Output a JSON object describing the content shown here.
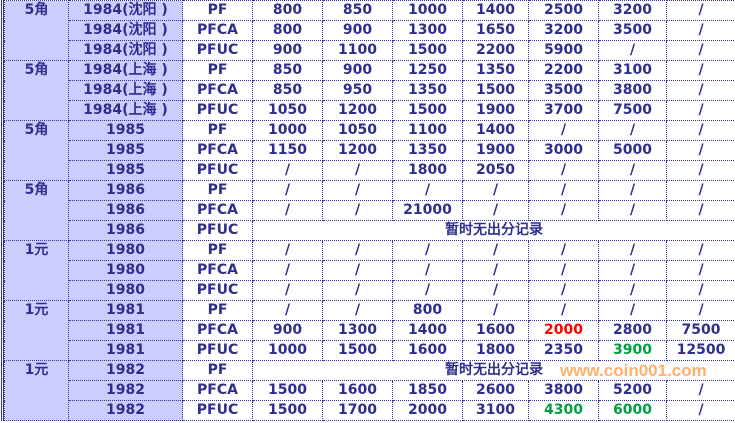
{
  "colors": {
    "text": "#2e2e8c",
    "header_bg": "#ccccff",
    "highlight_red": "#ff0000",
    "highlight_green": "#00a040"
  },
  "watermark": "www.coin001.com",
  "groups": [
    {
      "denom": "5角",
      "rows": [
        {
          "year": "1984(沈阳 )",
          "grade": "PF",
          "values": [
            "800",
            "850",
            "1000",
            "1400",
            "2500",
            "3200",
            "/"
          ]
        },
        {
          "year": "1984(沈阳 )",
          "grade": "PFCA",
          "values": [
            "800",
            "900",
            "1300",
            "1650",
            "3200",
            "3500",
            "/"
          ]
        },
        {
          "year": "1984(沈阳 )",
          "grade": "PFUC",
          "values": [
            "900",
            "1100",
            "1500",
            "2200",
            "5900",
            "/",
            "/"
          ]
        }
      ]
    },
    {
      "denom": "5角",
      "rows": [
        {
          "year": "1984(上海 )",
          "grade": "PF",
          "values": [
            "850",
            "900",
            "1250",
            "1350",
            "2200",
            "3100",
            "/"
          ]
        },
        {
          "year": "1984(上海 )",
          "grade": "PFCA",
          "values": [
            "850",
            "950",
            "1350",
            "1500",
            "3500",
            "3800",
            "/"
          ]
        },
        {
          "year": "1984(上海 )",
          "grade": "PFUC",
          "values": [
            "1050",
            "1200",
            "1500",
            "1900",
            "3700",
            "7500",
            "/"
          ]
        }
      ]
    },
    {
      "denom": "5角",
      "rows": [
        {
          "year": "1985",
          "grade": "PF",
          "values": [
            "1000",
            "1050",
            "1100",
            "1400",
            "/",
            "/",
            "/"
          ]
        },
        {
          "year": "1985",
          "grade": "PFCA",
          "values": [
            "1150",
            "1200",
            "1350",
            "1900",
            "3000",
            "5000",
            "/"
          ]
        },
        {
          "year": "1985",
          "grade": "PFUC",
          "values": [
            "/",
            "/",
            "1800",
            "2050",
            "/",
            "/",
            "/"
          ]
        }
      ]
    },
    {
      "denom": "5角",
      "rows": [
        {
          "year": "1986",
          "grade": "PF",
          "values": [
            "/",
            "/",
            "/",
            "/",
            "/",
            "/",
            "/"
          ]
        },
        {
          "year": "1986",
          "grade": "PFCA",
          "values": [
            "/",
            "/",
            "21000",
            "/",
            "/",
            "/",
            "/"
          ]
        },
        {
          "year": "1986",
          "grade": "PFUC",
          "note": "暂时无出分记录"
        }
      ]
    },
    {
      "denom": "1元",
      "rows": [
        {
          "year": "1980",
          "grade": "PF",
          "values": [
            "/",
            "/",
            "/",
            "/",
            "/",
            "/",
            "/"
          ]
        },
        {
          "year": "1980",
          "grade": "PFCA",
          "values": [
            "/",
            "/",
            "/",
            "/",
            "/",
            "/",
            "/"
          ]
        },
        {
          "year": "1980",
          "grade": "PFUC",
          "values": [
            "/",
            "/",
            "/",
            "/",
            "/",
            "/",
            "/"
          ]
        }
      ]
    },
    {
      "denom": "1元",
      "rows": [
        {
          "year": "1981",
          "grade": "PF",
          "values": [
            "/",
            "/",
            "800",
            "/",
            "/",
            "/",
            "/"
          ]
        },
        {
          "year": "1981",
          "grade": "PFCA",
          "values": [
            "900",
            "1300",
            "1400",
            "1600",
            "2000",
            "2800",
            "7500"
          ],
          "highlight": {
            "4": "red"
          }
        },
        {
          "year": "1981",
          "grade": "PFUC",
          "values": [
            "1000",
            "1500",
            "1600",
            "1800",
            "2350",
            "3900",
            "12500"
          ],
          "highlight": {
            "5": "green"
          }
        }
      ]
    },
    {
      "denom": "1元",
      "rows": [
        {
          "year": "1982",
          "grade": "PF",
          "note": "暂时无出分记录"
        },
        {
          "year": "1982",
          "grade": "PFCA",
          "values": [
            "1500",
            "1600",
            "1850",
            "2600",
            "3800",
            "5200",
            "/"
          ]
        },
        {
          "year": "1982",
          "grade": "PFUC",
          "values": [
            "1500",
            "1700",
            "2000",
            "3100",
            "4300",
            "6000",
            "/"
          ],
          "highlight": {
            "4": "green",
            "5": "green"
          }
        }
      ]
    }
  ]
}
